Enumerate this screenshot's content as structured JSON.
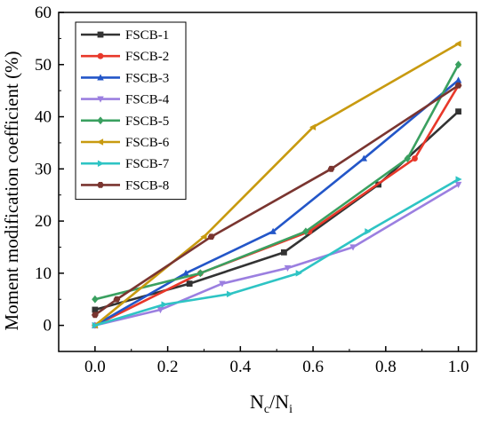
{
  "chart_data": {
    "type": "line",
    "title": "",
    "xlabel_main": "N",
    "xlabel_sub1": "c",
    "xlabel_slash": "/N",
    "xlabel_sub2": "i",
    "ylabel": "Moment modification coefficient (%)",
    "xlim": [
      -0.1,
      1.05
    ],
    "ylim": [
      -5,
      60
    ],
    "xticks": [
      0.0,
      0.2,
      0.4,
      0.6,
      0.8,
      1.0
    ],
    "xtick_labels": [
      "0.0",
      "0.2",
      "0.4",
      "0.6",
      "0.8",
      "1.0"
    ],
    "yticks": [
      0,
      10,
      20,
      30,
      40,
      50,
      60
    ],
    "ytick_labels": [
      "0",
      "10",
      "20",
      "30",
      "40",
      "50",
      "60"
    ],
    "legend_position": "top-left",
    "series": [
      {
        "name": "FSCB-1",
        "color": "#333333",
        "marker": "square",
        "x": [
          0,
          0.26,
          0.52,
          0.78,
          1.0
        ],
        "y": [
          3,
          8,
          14,
          27,
          41
        ]
      },
      {
        "name": "FSCB-2",
        "color": "#e8382a",
        "marker": "circle",
        "x": [
          0,
          0.29,
          0.59,
          0.88,
          1.0
        ],
        "y": [
          0,
          10,
          18,
          32,
          46
        ]
      },
      {
        "name": "FSCB-3",
        "color": "#2356c8",
        "marker": "triangle-up",
        "x": [
          0,
          0.25,
          0.49,
          0.74,
          1.0
        ],
        "y": [
          0,
          10,
          18,
          32,
          47
        ]
      },
      {
        "name": "FSCB-4",
        "color": "#9b7fe0",
        "marker": "triangle-down",
        "x": [
          0,
          0.18,
          0.35,
          0.53,
          0.71,
          1.0
        ],
        "y": [
          0,
          3,
          8,
          11,
          15,
          27
        ]
      },
      {
        "name": "FSCB-5",
        "color": "#3aa060",
        "marker": "diamond",
        "x": [
          0,
          0.29,
          0.58,
          0.86,
          1.0
        ],
        "y": [
          5,
          10,
          18,
          32,
          50
        ]
      },
      {
        "name": "FSCB-6",
        "color": "#c89a10",
        "marker": "triangle-left",
        "x": [
          0,
          0.3,
          0.6,
          1.0
        ],
        "y": [
          0,
          17,
          38,
          54
        ]
      },
      {
        "name": "FSCB-7",
        "color": "#2ec4c4",
        "marker": "triangle-right",
        "x": [
          0,
          0.19,
          0.37,
          0.56,
          0.75,
          1.0
        ],
        "y": [
          0,
          4,
          6,
          10,
          18,
          28
        ]
      },
      {
        "name": "FSCB-8",
        "color": "#7a3530",
        "marker": "hexagon",
        "x": [
          0,
          0.06,
          0.32,
          0.65,
          1.0
        ],
        "y": [
          2,
          5,
          17,
          30,
          46
        ]
      }
    ]
  }
}
